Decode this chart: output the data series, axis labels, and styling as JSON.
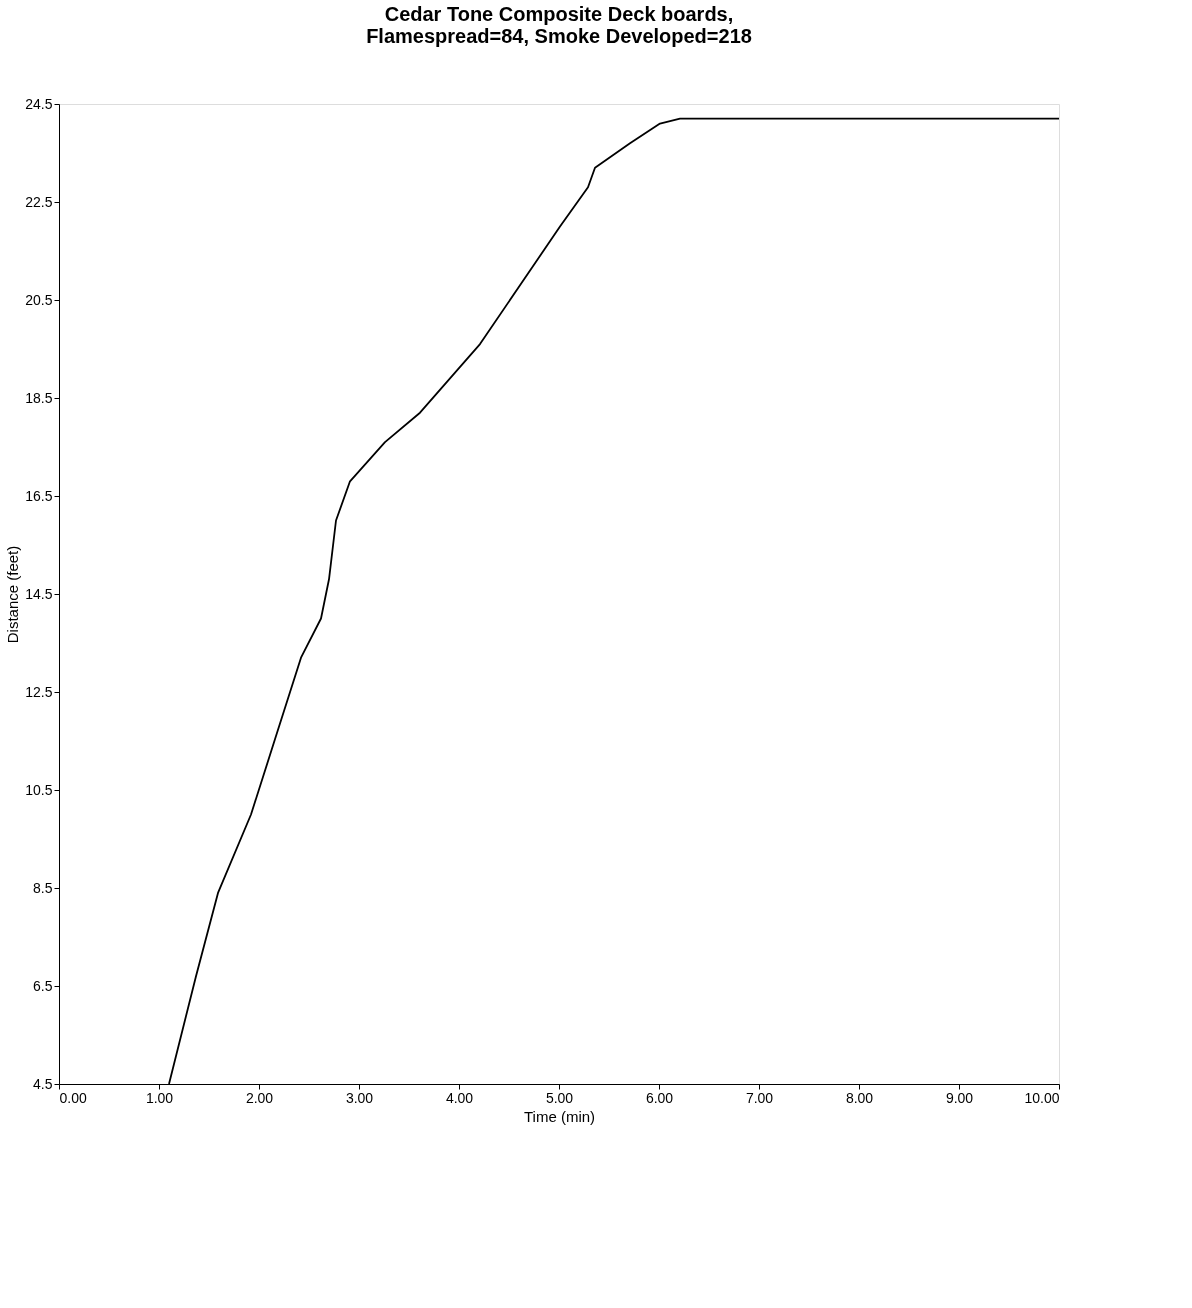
{
  "chart_data": {
    "type": "line",
    "title": [
      "Cedar Tone Composite Deck boards,",
      "Flamespread=84, Smoke Developed=218"
    ],
    "xlabel": "Time (min)",
    "ylabel": "Distance (feet)",
    "x": [
      1.1,
      1.37,
      1.59,
      1.92,
      2.17,
      2.42,
      2.62,
      2.7,
      2.77,
      2.91,
      3.26,
      3.61,
      3.91,
      4.21,
      4.61,
      5.01,
      5.29,
      5.36,
      5.71,
      6.01,
      6.21,
      10.0
    ],
    "series": [
      {
        "color": "#000000",
        "values": [
          4.5,
          6.7,
          8.4,
          10.0,
          11.6,
          13.2,
          14.0,
          14.8,
          16.0,
          16.8,
          17.6,
          18.2,
          18.9,
          19.6,
          20.8,
          22.0,
          22.8,
          23.2,
          23.7,
          24.1,
          24.2,
          24.2
        ]
      }
    ],
    "xlim": [
      0,
      10
    ],
    "ylim": [
      4.5,
      24.5
    ],
    "xticks": [
      {
        "value": 0,
        "label": "0.00"
      },
      {
        "value": 1,
        "label": "1.00"
      },
      {
        "value": 2,
        "label": "2.00"
      },
      {
        "value": 3,
        "label": "3.00"
      },
      {
        "value": 4,
        "label": "4.00"
      },
      {
        "value": 5,
        "label": "5.00"
      },
      {
        "value": 6,
        "label": "6.00"
      },
      {
        "value": 7,
        "label": "7.00"
      },
      {
        "value": 8,
        "label": "8.00"
      },
      {
        "value": 9,
        "label": "9.00"
      },
      {
        "value": 10,
        "label": "10.00"
      }
    ],
    "yticks": [
      4.5,
      6.5,
      8.5,
      10.5,
      12.5,
      14.5,
      16.5,
      18.5,
      20.5,
      22.5,
      24.5
    ],
    "grid": false,
    "marker": "none",
    "line_style": "solid"
  }
}
